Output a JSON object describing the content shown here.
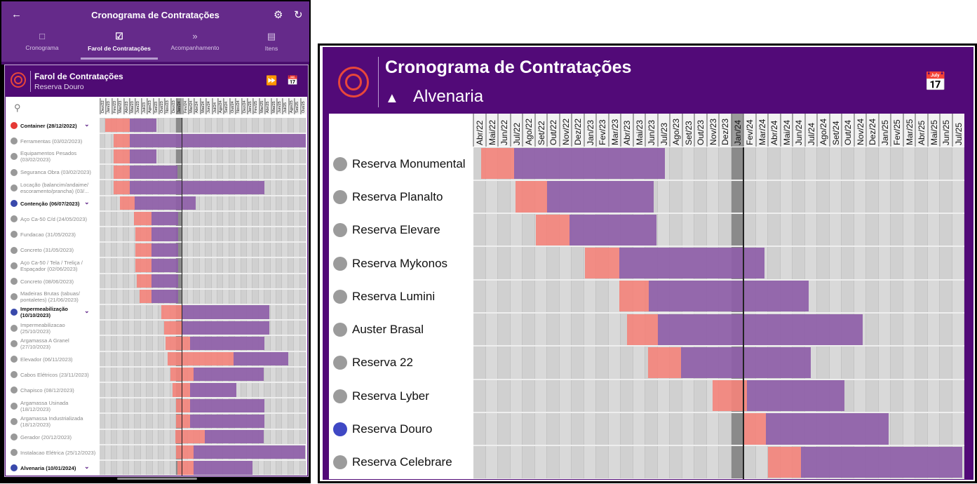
{
  "app": {
    "title": "Cronograma de Contratações",
    "back_icon": "arrow-left",
    "settings_icon": "gear",
    "refresh_icon": "sync",
    "tabs": [
      {
        "label": "Cronograma",
        "icon": "calendar"
      },
      {
        "label": "Farol de Contratações",
        "icon": "calendar-check",
        "active": true
      },
      {
        "label": "Acompanhamento",
        "icon": "double-chevron-right"
      },
      {
        "label": "Itens",
        "icon": "tray"
      }
    ]
  },
  "left_card": {
    "title": "Farol de Contratações",
    "subtitle": "Reserva Douro",
    "current_month": "Jan/24",
    "months": [
      "Dez/22",
      "Jan/23",
      "Fev/23",
      "Mar/23",
      "Abr/23",
      "Mai/23",
      "Jun/23",
      "Jul/23",
      "Ago/23",
      "Set/23",
      "Out/23",
      "Nov/23",
      "Dez/23",
      "Jan/24",
      "Fev/24",
      "Mar/24",
      "Abr/24",
      "Mai/24",
      "Jun/24",
      "Jul/24",
      "Ago/24",
      "Set/24",
      "Out/24",
      "Nov/24",
      "Dez/24",
      "Jan/25",
      "Fev/25",
      "Mar/25",
      "Abr/25",
      "Mai/25",
      "Jun/25",
      "Jul/25",
      "Ago/25",
      "Set/25",
      "Out/25"
    ],
    "rows": [
      {
        "label": "Container (28/12/2022)",
        "group": true,
        "status": "#e53935",
        "start": 0.9,
        "red_end": 5.1,
        "end": 9.7
      },
      {
        "label": "Ferramentas  (03/02/2023)",
        "start": 2.4,
        "red_end": 5.1,
        "end": 35
      },
      {
        "label": "Equipamentos Pesados (03/02/2023)",
        "start": 2.4,
        "red_end": 5.1,
        "end": 9.7
      },
      {
        "label": "Seguranca Obra  (03/02/2023)",
        "start": 2.4,
        "red_end": 5.1,
        "end": 13.2
      },
      {
        "label": "Locação (balancim/andaime/ escoramento/prancha)  (03/...",
        "start": 2.4,
        "red_end": 5.1,
        "end": 28
      },
      {
        "label": "Contenção (06/07/2023)",
        "group": true,
        "status": "#3949ab",
        "start": 3.5,
        "red_end": 6.0,
        "end": 16.3
      },
      {
        "label": "Aço Ca-50 C/d  (24/05/2023)",
        "start": 5.8,
        "red_end": 8.8,
        "end": 13.3
      },
      {
        "label": "Fundacao  (31/05/2023)",
        "start": 6.1,
        "red_end": 8.8,
        "end": 13.3
      },
      {
        "label": "Concreto  (31/05/2023)",
        "start": 6.1,
        "red_end": 8.8,
        "end": 13.3
      },
      {
        "label": "Aço Ca-50 / Tela / Treliça / Espaçador  (02/06/2023)",
        "start": 6.1,
        "red_end": 8.8,
        "end": 13.3
      },
      {
        "label": "Concreto  (08/06/2023)",
        "start": 6.3,
        "red_end": 8.8,
        "end": 13.3
      },
      {
        "label": "Madeiras Brutas (tabuas/ pontaletes)  (21/06/2023)",
        "start": 6.8,
        "red_end": 8.8,
        "end": 13.3
      },
      {
        "label": "Impermeabilização (10/10/2023)",
        "group": true,
        "status": "#3949ab",
        "start": 10.5,
        "red_end": 14.1,
        "end": 28.8
      },
      {
        "label": "Impermeabilizacao (25/10/2023)",
        "start": 11.0,
        "red_end": 14.1,
        "end": 28.8
      },
      {
        "label": "Argamassa A Granel (27/10/2023)",
        "start": 11.2,
        "red_end": 15.3,
        "end": 28
      },
      {
        "label": "Elevador  (06/11/2023)",
        "start": 11.6,
        "red_end": 22.7,
        "end": 32
      },
      {
        "label": "Cabos Elétricos  (23/11/2023)",
        "start": 12.0,
        "red_end": 16.0,
        "end": 27.8
      },
      {
        "label": "Chapisco  (08/12/2023)",
        "start": 12.4,
        "red_end": 15.3,
        "end": 23.2
      },
      {
        "label": "Argamassa Usinada (18/12/2023)",
        "start": 13.0,
        "red_end": 15.3,
        "end": 28
      },
      {
        "label": "Argamassa Industrializada (18/12/2023)",
        "start": 13.0,
        "red_end": 15.3,
        "end": 28
      },
      {
        "label": "Gerador  (20/12/2023)",
        "start": 12.8,
        "red_end": 17.9,
        "end": 27.8
      },
      {
        "label": "Instalacao Elétrica (25/12/2023)",
        "start": 13.0,
        "red_end": 16.0,
        "end": 34.9
      },
      {
        "label": "Alvenaria (10/01/2024)",
        "group": true,
        "status": "#3949ab",
        "start": 13.2,
        "red_end": 16.0,
        "end": 26
      },
      {
        "label": "",
        "start": 13.2,
        "red_end": 15.3,
        "end": 28
      }
    ]
  },
  "right_card": {
    "title": "Cronograma de Contratações",
    "subtitle": "Alvenaria",
    "current_month": "Jan/24",
    "months": [
      "Abr/22",
      "Mai/22",
      "Jun/22",
      "Jul/22",
      "Ago/22",
      "Set/22",
      "Out/22",
      "Nov/22",
      "Dez/22",
      "Jan/23",
      "Fev/23",
      "Mar/23",
      "Abr/23",
      "Mai/23",
      "Jun/23",
      "Jul/23",
      "Ago/23",
      "Set/23",
      "Out/23",
      "Nov/23",
      "Dez/23",
      "Jan/24",
      "Fev/24",
      "Mar/24",
      "Abr/24",
      "Mai/24",
      "Jun/24",
      "Jul/24",
      "Ago/24",
      "Set/24",
      "Out/24",
      "Nov/24",
      "Dez/24",
      "Jan/25",
      "Fev/25",
      "Mar/25",
      "Abr/25",
      "Mai/25",
      "Jun/25",
      "Jul/25"
    ],
    "rows": [
      {
        "label": "Reserva Monumental",
        "start": 0.6,
        "red_end": 3.3,
        "end": 15.6
      },
      {
        "label": "Reserva Planalto",
        "start": 3.4,
        "red_end": 6.0,
        "end": 14.7
      },
      {
        "label": "Reserva Elevare",
        "start": 5.1,
        "red_end": 7.8,
        "end": 14.9
      },
      {
        "label": "Reserva Mykonos",
        "start": 9.1,
        "red_end": 11.9,
        "end": 23.7
      },
      {
        "label": "Reserva Lumini",
        "start": 11.9,
        "red_end": 14.3,
        "end": 27.3
      },
      {
        "label": "Auster Brasal",
        "start": 12.5,
        "red_end": 15.0,
        "end": 31.7
      },
      {
        "label": "Reserva 22",
        "start": 14.2,
        "red_end": 16.9,
        "end": 27.5
      },
      {
        "label": "Reserva Lyber",
        "start": 19.5,
        "red_end": 22.3,
        "end": 30.2
      },
      {
        "label": "Reserva Douro",
        "selected": true,
        "status": "#3f48c4",
        "start": 22.0,
        "red_end": 23.8,
        "end": 33.8
      },
      {
        "label": "Reserva Celebrare",
        "start": 24.0,
        "red_end": 26.7,
        "end": 39.8
      }
    ]
  },
  "colors": {
    "red": "#f4837a",
    "purple": "#8e5ea8",
    "header": "#520a78",
    "appbar": "#652a8a"
  }
}
